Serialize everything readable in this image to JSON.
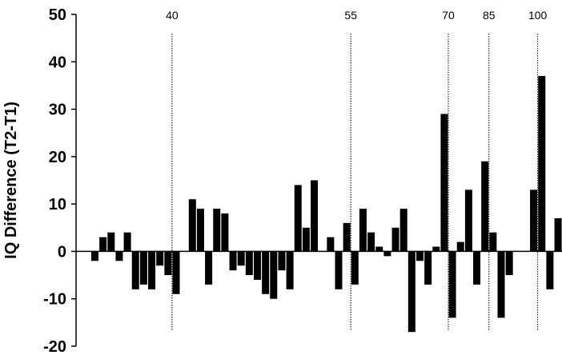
{
  "chart_data": {
    "type": "bar",
    "title": "",
    "xlabel": "",
    "ylabel": "IQ Difference (T2-T1)",
    "ylim": [
      -20,
      50
    ],
    "yticks": [
      -20,
      -10,
      0,
      10,
      20,
      30,
      40,
      50
    ],
    "grid": false,
    "legend": "none",
    "bar_color": "#000000",
    "values": [
      -2,
      3,
      4,
      -2,
      4,
      -8,
      -7,
      -8,
      -3,
      -5,
      -9,
      0,
      11,
      9,
      -7,
      9,
      8,
      -4,
      -3,
      -5,
      -6,
      -9,
      -10,
      -4,
      -8,
      14,
      5,
      15,
      0,
      3,
      -8,
      6,
      -7,
      9,
      4,
      1,
      -1,
      5,
      9,
      -17,
      -2,
      -7,
      1,
      29,
      -14,
      2,
      13,
      -7,
      19,
      4,
      -14,
      -5,
      0,
      0,
      13,
      37,
      -8,
      7
    ],
    "reference_lines": [
      {
        "label": "40",
        "after_bar_index": 9
      },
      {
        "label": "55",
        "after_bar_index": 31
      },
      {
        "label": "70",
        "after_bar_index": 43
      },
      {
        "label": "85",
        "after_bar_index": 48
      },
      {
        "label": "100",
        "after_bar_index": 54
      }
    ]
  }
}
